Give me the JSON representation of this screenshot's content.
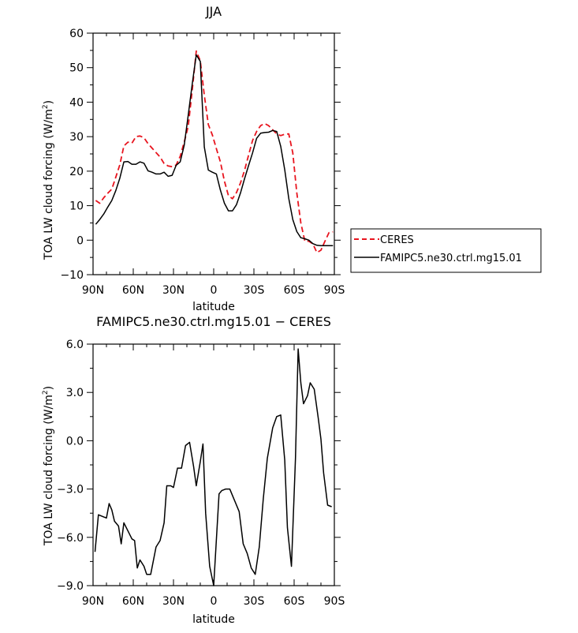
{
  "chart_data": [
    {
      "type": "line",
      "title": "JJA",
      "xlabel": "latitude",
      "ylabel": "TOA LW cloud forcing (W/m²)",
      "ylabel_main": "TOA LW cloud forcing (W/m",
      "ylabel_sup": "2",
      "ylabel_end": ")",
      "xlim": [
        -90,
        90
      ],
      "ylim": [
        -10,
        60
      ],
      "xticks": [
        -90,
        -60,
        -30,
        0,
        30,
        60,
        90
      ],
      "xtick_labels": [
        "90N",
        "60N",
        "30N",
        "0",
        "30S",
        "60S",
        "90S"
      ],
      "yticks": [
        -10,
        0,
        10,
        20,
        30,
        40,
        50,
        60
      ],
      "ytick_labels": [
        "−10",
        "0",
        "10",
        "20",
        "30",
        "40",
        "50",
        "60"
      ],
      "legend_position": "right",
      "series": [
        {
          "name": "CERES",
          "color": "#e8141e",
          "dash": "dashed",
          "x": [
            -88,
            -85,
            -82,
            -79,
            -76,
            -73,
            -70,
            -67,
            -64,
            -61,
            -58,
            -55,
            -52,
            -49,
            -46,
            -43,
            -40,
            -37,
            -34,
            -31,
            -28,
            -25,
            -22,
            -19,
            -16,
            -13,
            -10,
            -7,
            -4,
            -1,
            2,
            5,
            8,
            11,
            14,
            17,
            20,
            23,
            26,
            29,
            32,
            35,
            38,
            41,
            44,
            47,
            50,
            53,
            56,
            59,
            62,
            65,
            68,
            71,
            74,
            77,
            80,
            83,
            86,
            89
          ],
          "y": [
            11.5,
            10.7,
            12.3,
            13.6,
            14.8,
            18.3,
            21.9,
            27.3,
            28.4,
            28.1,
            30.0,
            30.2,
            29.7,
            28.0,
            26.7,
            25.4,
            24.1,
            22.2,
            21.5,
            21.3,
            21.8,
            24.3,
            28.4,
            33.0,
            43.5,
            54.8,
            52.0,
            42.0,
            33.5,
            30.5,
            26.5,
            22.7,
            17.1,
            12.9,
            12.0,
            13.8,
            16.6,
            20.2,
            24.6,
            28.9,
            31.5,
            33.2,
            33.8,
            33.2,
            32.0,
            30.8,
            30.3,
            30.7,
            30.8,
            25.3,
            13.7,
            5.0,
            -0.3,
            -0.3,
            -1.1,
            -3.6,
            -2.9,
            -0.3,
            2.2,
            2.4
          ]
        },
        {
          "name": "FAMIPC5.ne30.ctrl.mg15.01",
          "color": "#000000",
          "dash": "solid",
          "x": [
            -88,
            -85,
            -82,
            -79,
            -76,
            -73,
            -70,
            -67,
            -64,
            -61,
            -58,
            -55,
            -52,
            -49,
            -46,
            -43,
            -40,
            -37,
            -34,
            -31,
            -28,
            -25,
            -22,
            -19,
            -16,
            -13,
            -10,
            -7,
            -4,
            -1,
            2,
            5,
            8,
            11,
            14,
            17,
            20,
            23,
            26,
            29,
            32,
            35,
            38,
            41,
            44,
            47,
            50,
            53,
            56,
            59,
            62,
            65,
            68,
            71,
            74,
            77,
            80,
            83,
            86,
            89
          ],
          "y": [
            4.6,
            6.0,
            7.6,
            9.6,
            11.5,
            14.4,
            18.0,
            22.7,
            22.8,
            22.0,
            22.0,
            22.7,
            22.3,
            20.1,
            19.7,
            19.2,
            19.2,
            19.7,
            18.5,
            18.8,
            21.7,
            22.7,
            27.5,
            36.2,
            45.3,
            53.7,
            51.8,
            27.0,
            20.3,
            19.7,
            19.2,
            14.5,
            10.7,
            8.5,
            8.5,
            10.3,
            13.7,
            17.8,
            21.6,
            25.3,
            29.5,
            31.0,
            31.2,
            31.3,
            31.8,
            31.5,
            27.2,
            20.4,
            12.1,
            6.0,
            2.5,
            0.7,
            0.4,
            0.0,
            -1.0,
            -1.5,
            -1.6,
            -1.6,
            -1.6,
            -1.6
          ]
        }
      ]
    },
    {
      "type": "line",
      "title": "FAMIPC5.ne30.ctrl.mg15.01 − CERES",
      "xlabel": "latitude",
      "ylabel": "TOA LW cloud forcing (W/m²)",
      "ylabel_main": "TOA LW cloud forcing (W/m",
      "ylabel_sup": "2",
      "ylabel_end": ")",
      "xlim": [
        -90,
        90
      ],
      "ylim": [
        -9,
        6
      ],
      "xticks": [
        -90,
        -60,
        -30,
        0,
        30,
        60,
        90
      ],
      "xtick_labels": [
        "90N",
        "60N",
        "30N",
        "0",
        "30S",
        "60S",
        "90S"
      ],
      "yticks": [
        -9,
        -6,
        -3,
        0,
        3,
        6
      ],
      "ytick_labels": [
        "−9.0",
        "−6.0",
        "−3.0",
        "0.0",
        "3.0",
        "6.0"
      ],
      "series": [
        {
          "name": "",
          "color": "#000000",
          "dash": "solid",
          "x": [
            -88.5,
            -86,
            -83,
            -80,
            -78,
            -76,
            -74,
            -71,
            -69,
            -67,
            -64,
            -61,
            -59,
            -57,
            -55,
            -52,
            -50,
            -47,
            -43,
            -40,
            -37,
            -35,
            -32,
            -30,
            -27,
            -24,
            -21,
            -18,
            -15,
            -13,
            -10,
            -8,
            -6,
            -3,
            0,
            4,
            6,
            9,
            12,
            15,
            19,
            22,
            25,
            28,
            31,
            34,
            37,
            40,
            44,
            47,
            50,
            53,
            55,
            58,
            61,
            63,
            65,
            67,
            70,
            72,
            75,
            78,
            80,
            82,
            85,
            88
          ],
          "y": [
            -6.9,
            -4.6,
            -4.7,
            -4.8,
            -3.9,
            -4.3,
            -5.0,
            -5.3,
            -6.4,
            -5.1,
            -5.6,
            -6.1,
            -6.2,
            -7.9,
            -7.4,
            -7.8,
            -8.3,
            -8.3,
            -6.6,
            -6.2,
            -5.1,
            -2.8,
            -2.8,
            -2.9,
            -1.7,
            -1.7,
            -0.3,
            -0.1,
            -1.6,
            -2.8,
            -1.3,
            -0.2,
            -4.5,
            -7.8,
            -9.0,
            -3.3,
            -3.1,
            -3.0,
            -3.0,
            -3.6,
            -4.4,
            -6.4,
            -7.0,
            -7.9,
            -8.3,
            -6.6,
            -3.6,
            -1.1,
            0.8,
            1.5,
            1.6,
            -1.2,
            -5.4,
            -7.8,
            -1.1,
            5.7,
            3.6,
            2.3,
            2.8,
            3.6,
            3.2,
            1.4,
            0.1,
            -2.0,
            -4.0,
            -4.1
          ]
        }
      ]
    }
  ]
}
